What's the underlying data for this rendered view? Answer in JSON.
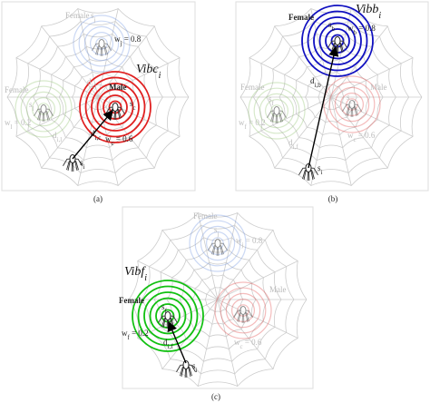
{
  "panels": [
    {
      "caption": "(a)",
      "labels": [
        {
          "text": "Female"
        },
        {
          "text": "s",
          "sub": "j"
        },
        {
          "text": "w",
          "sub": "j",
          "rest": " = 0.8"
        },
        {
          "text": "Female"
        },
        {
          "text": "s",
          "sub": "l"
        },
        {
          "text": "w",
          "sub": "l",
          "rest": " = 0.2"
        },
        {
          "text": "Vibc",
          "sub": "i"
        },
        {
          "text": "Male"
        },
        {
          "text": "s",
          "sub": "c"
        },
        {
          "text": "w",
          "sub": "c",
          "rest": " = 0.6"
        },
        {
          "text": "d",
          "sub": "i,c"
        },
        {
          "text": "d",
          "sub": "i,j"
        },
        {
          "text": "d",
          "sub": "i,l"
        },
        {
          "text": "s",
          "sub": "i"
        }
      ]
    },
    {
      "caption": "(b)",
      "labels": [
        {
          "text": "Vibb",
          "sub": "i"
        },
        {
          "text": "Female"
        },
        {
          "text": "s",
          "sub": "b"
        },
        {
          "text": "w",
          "sub": "b",
          "rest": " = 0.8"
        },
        {
          "text": "Female"
        },
        {
          "text": "s",
          "sub": "f"
        },
        {
          "text": "w",
          "sub": "f",
          "rest": " = 0.2"
        },
        {
          "text": "Male"
        },
        {
          "text": "s",
          "sub": "c"
        },
        {
          "text": "w",
          "sub": "c",
          "rest": " = 0.6"
        },
        {
          "text": "d",
          "sub": "i,b"
        },
        {
          "text": "d",
          "sub": "i,f"
        },
        {
          "text": "s",
          "sub": "i"
        }
      ]
    },
    {
      "caption": "(c)",
      "labels": [
        {
          "text": "Female"
        },
        {
          "text": "s",
          "sub": "j"
        },
        {
          "text": "w",
          "sub": "j",
          "rest": " = 0.8"
        },
        {
          "text": "Vibf",
          "sub": "i"
        },
        {
          "text": "Male"
        },
        {
          "text": "Female"
        },
        {
          "text": "s",
          "sub": "f"
        },
        {
          "text": "w",
          "sub": "f",
          "rest": " = 0.2"
        },
        {
          "text": "w",
          "sub": "c",
          "rest": " = 0.6"
        },
        {
          "text": "d",
          "sub": "i,f"
        },
        {
          "text": "s",
          "sub": "i"
        }
      ]
    }
  ]
}
